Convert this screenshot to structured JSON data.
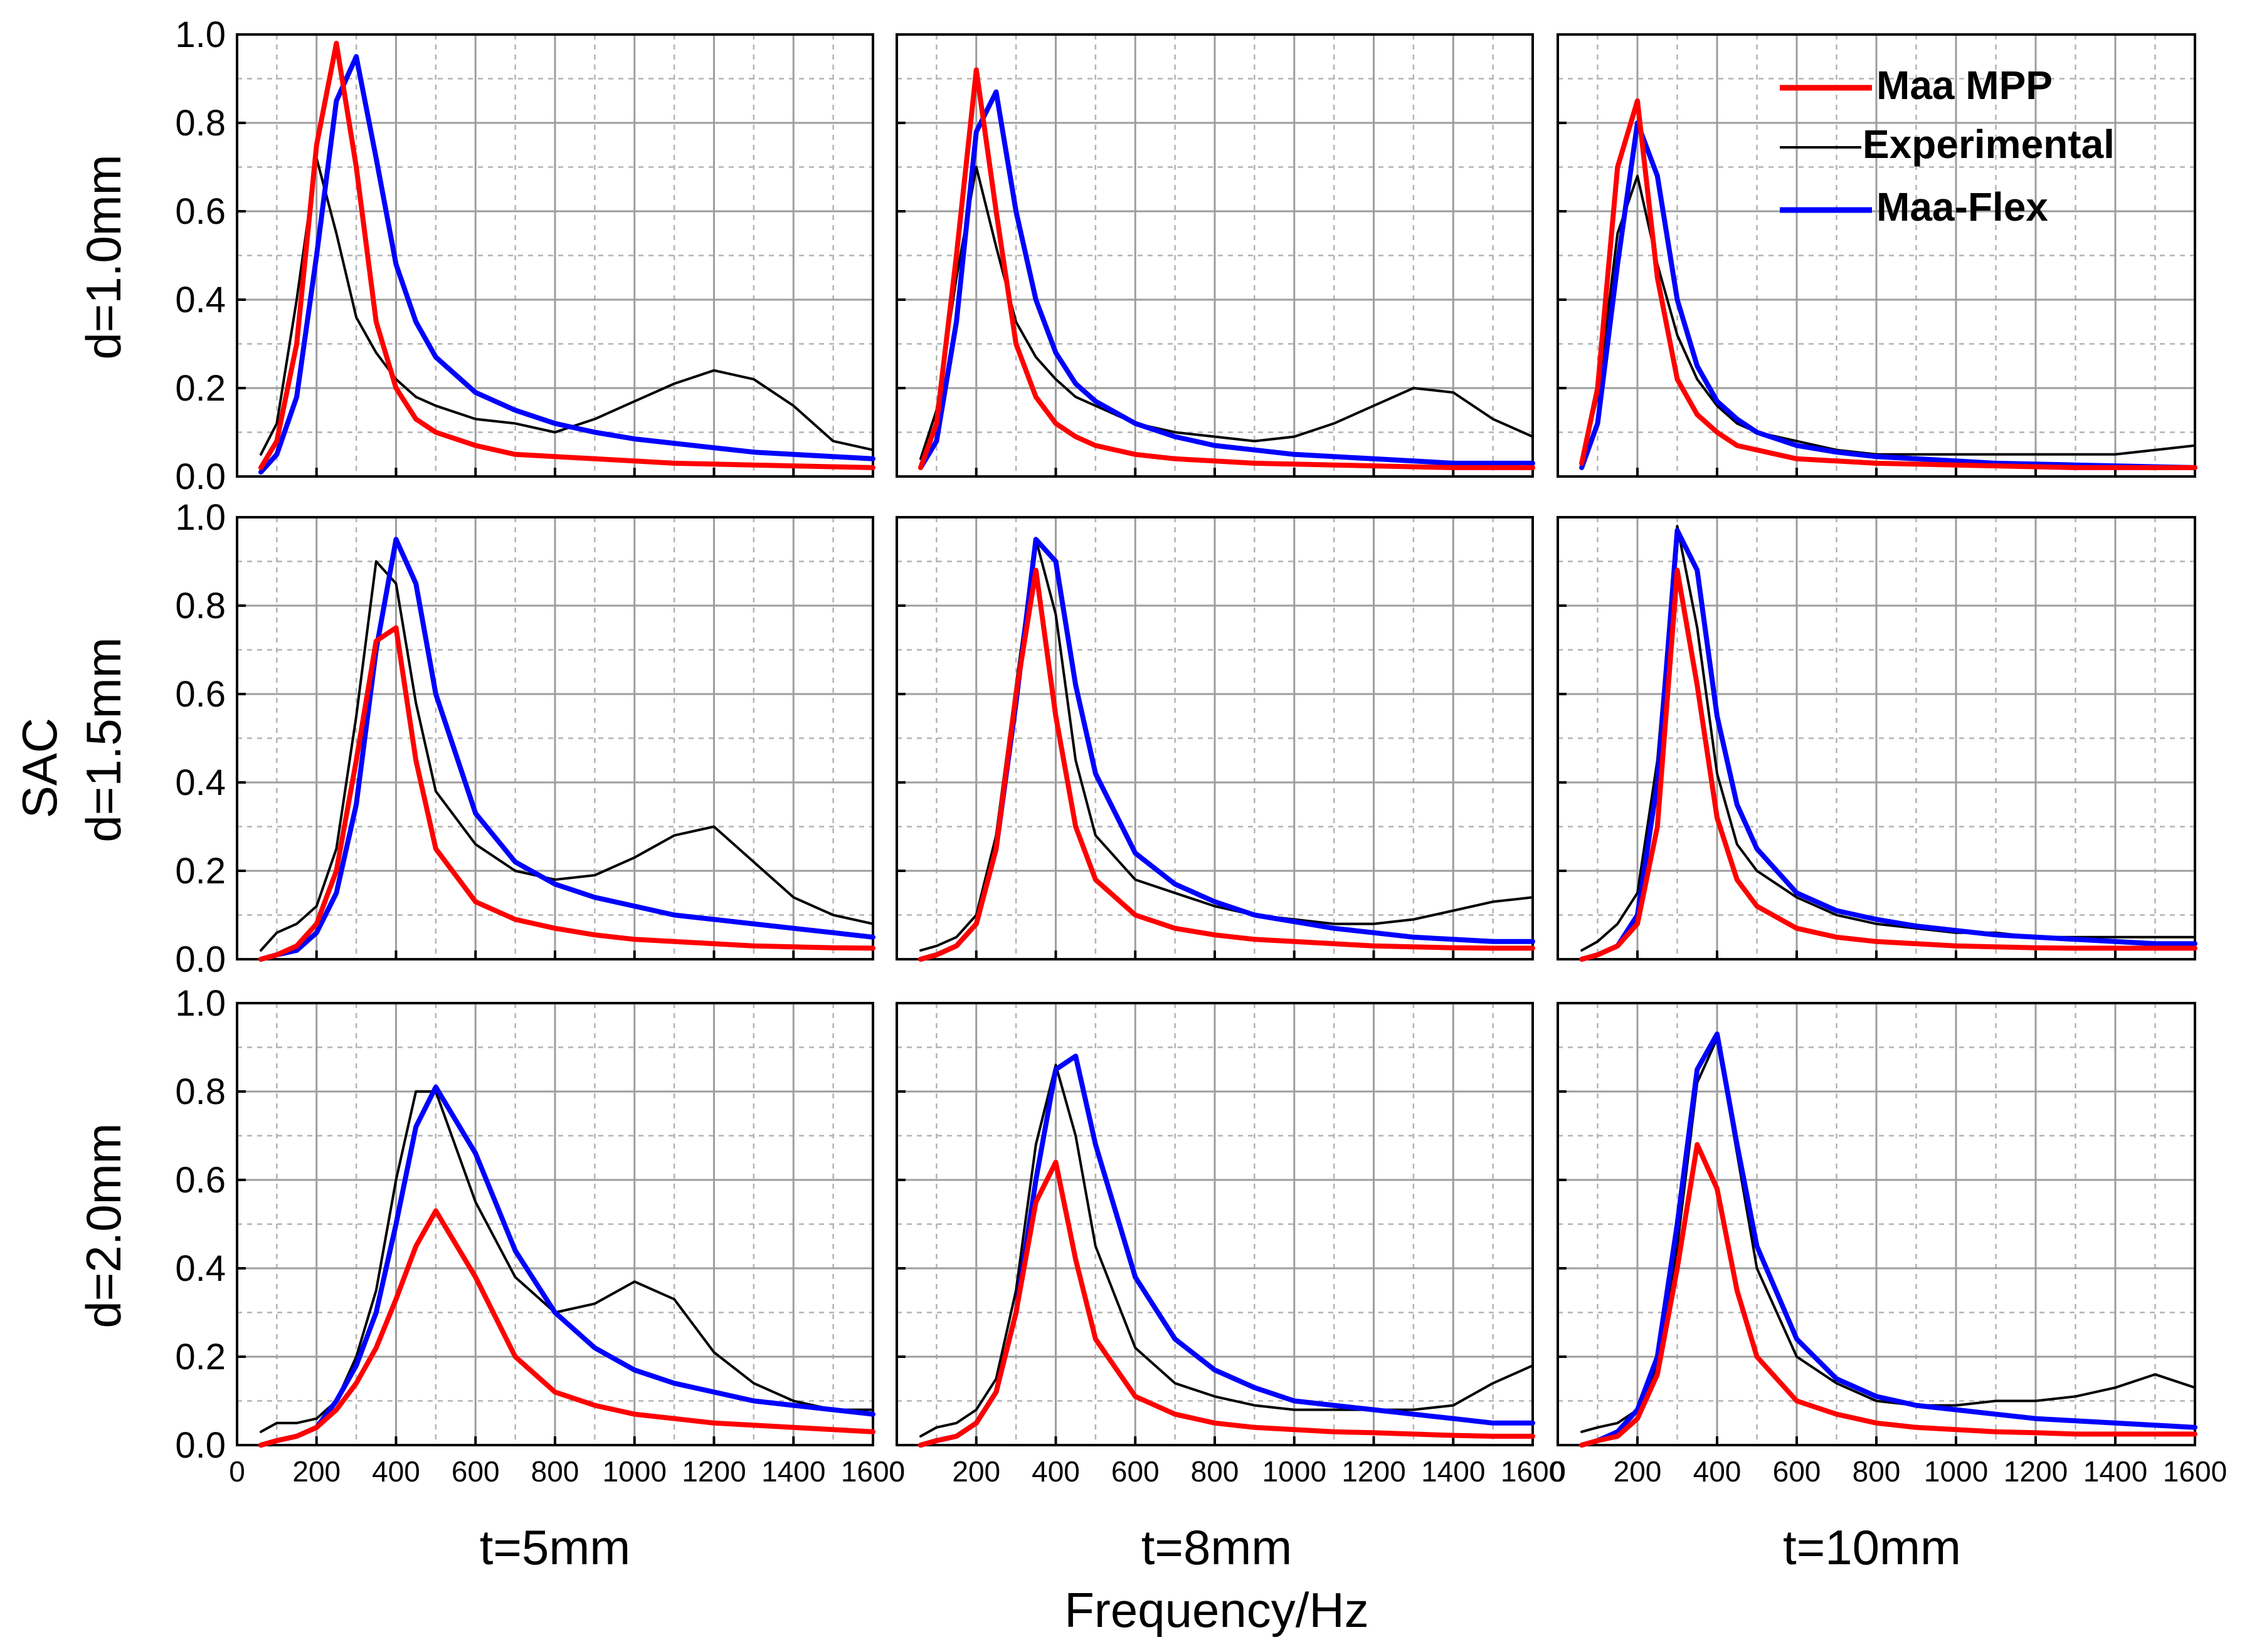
{
  "chart_data": {
    "type": "line",
    "layout": "3x3 grid of subplots",
    "ylabel": "SAC",
    "xlabel": "Frequency/Hz",
    "xlim": [
      0,
      1600
    ],
    "ylim": [
      0.0,
      1.0
    ],
    "x_ticks": [
      "0",
      "200",
      "400",
      "600",
      "800",
      "1000",
      "1200",
      "1400",
      "1600"
    ],
    "y_ticks": [
      "0.0",
      "0.2",
      "0.4",
      "0.6",
      "0.8",
      "1.0"
    ],
    "rows": [
      "d=1.0mm",
      "d=1.5mm",
      "d=2.0mm"
    ],
    "columns": [
      "t=5mm",
      "t=8mm",
      "t=10mm"
    ],
    "legend": [
      {
        "name": "Maa MPP",
        "color": "#ff0000"
      },
      {
        "name": "Experimental",
        "color": "#000000"
      },
      {
        "name": "Maa-Flex",
        "color": "#0000ff"
      }
    ],
    "series_x": [
      60,
      100,
      150,
      200,
      250,
      300,
      350,
      400,
      450,
      500,
      600,
      700,
      800,
      900,
      1000,
      1100,
      1200,
      1300,
      1400,
      1500,
      1600
    ],
    "panels": [
      {
        "row": 0,
        "col": 0,
        "maa_mpp": [
          0.02,
          0.08,
          0.3,
          0.75,
          0.98,
          0.7,
          0.35,
          0.2,
          0.13,
          0.1,
          0.07,
          0.05,
          0.045,
          0.04,
          0.035,
          0.03,
          0.028,
          0.026,
          0.024,
          0.022,
          0.02
        ],
        "experimental": [
          0.05,
          0.12,
          0.4,
          0.72,
          0.55,
          0.36,
          0.28,
          0.22,
          0.18,
          0.16,
          0.13,
          0.12,
          0.1,
          0.13,
          0.17,
          0.21,
          0.24,
          0.22,
          0.16,
          0.08,
          0.06
        ],
        "maa_flex": [
          0.01,
          0.05,
          0.18,
          0.5,
          0.85,
          0.95,
          0.72,
          0.48,
          0.35,
          0.27,
          0.19,
          0.15,
          0.12,
          0.1,
          0.085,
          0.075,
          0.065,
          0.055,
          0.05,
          0.045,
          0.04
        ]
      },
      {
        "row": 0,
        "col": 1,
        "maa_mpp": [
          0.02,
          0.12,
          0.5,
          0.92,
          0.6,
          0.3,
          0.18,
          0.12,
          0.09,
          0.07,
          0.05,
          0.04,
          0.035,
          0.03,
          0.028,
          0.026,
          0.024,
          0.022,
          0.02,
          0.02,
          0.02
        ],
        "experimental": [
          0.04,
          0.15,
          0.45,
          0.7,
          0.52,
          0.35,
          0.27,
          0.22,
          0.18,
          0.16,
          0.12,
          0.1,
          0.09,
          0.08,
          0.09,
          0.12,
          0.16,
          0.2,
          0.19,
          0.13,
          0.09
        ],
        "maa_flex": [
          0.02,
          0.08,
          0.35,
          0.78,
          0.87,
          0.6,
          0.4,
          0.28,
          0.21,
          0.17,
          0.12,
          0.09,
          0.07,
          0.06,
          0.05,
          0.045,
          0.04,
          0.035,
          0.03,
          0.03,
          0.03
        ]
      },
      {
        "row": 0,
        "col": 2,
        "maa_mpp": [
          0.03,
          0.2,
          0.7,
          0.85,
          0.45,
          0.22,
          0.14,
          0.1,
          0.07,
          0.06,
          0.04,
          0.035,
          0.03,
          0.028,
          0.026,
          0.024,
          0.022,
          0.02,
          0.02,
          0.02,
          0.02
        ],
        "experimental": [
          0.04,
          0.18,
          0.55,
          0.68,
          0.48,
          0.32,
          0.22,
          0.16,
          0.12,
          0.1,
          0.08,
          0.06,
          0.05,
          0.05,
          0.05,
          0.05,
          0.05,
          0.05,
          0.05,
          0.06,
          0.07
        ],
        "maa_flex": [
          0.02,
          0.12,
          0.48,
          0.8,
          0.68,
          0.4,
          0.25,
          0.17,
          0.13,
          0.1,
          0.07,
          0.055,
          0.045,
          0.04,
          0.035,
          0.03,
          0.028,
          0.026,
          0.024,
          0.022,
          0.02
        ]
      },
      {
        "row": 1,
        "col": 0,
        "maa_mpp": [
          0.0,
          0.01,
          0.03,
          0.08,
          0.2,
          0.45,
          0.72,
          0.75,
          0.45,
          0.25,
          0.13,
          0.09,
          0.07,
          0.055,
          0.045,
          0.04,
          0.035,
          0.03,
          0.028,
          0.026,
          0.025
        ],
        "experimental": [
          0.02,
          0.06,
          0.08,
          0.12,
          0.25,
          0.55,
          0.9,
          0.85,
          0.58,
          0.38,
          0.26,
          0.2,
          0.18,
          0.19,
          0.23,
          0.28,
          0.3,
          0.22,
          0.14,
          0.1,
          0.08
        ],
        "maa_flex": [
          0.0,
          0.01,
          0.02,
          0.06,
          0.15,
          0.35,
          0.7,
          0.95,
          0.85,
          0.6,
          0.33,
          0.22,
          0.17,
          0.14,
          0.12,
          0.1,
          0.09,
          0.08,
          0.07,
          0.06,
          0.05
        ]
      },
      {
        "row": 1,
        "col": 1,
        "maa_mpp": [
          0.0,
          0.01,
          0.03,
          0.08,
          0.25,
          0.6,
          0.88,
          0.55,
          0.3,
          0.18,
          0.1,
          0.07,
          0.055,
          0.045,
          0.04,
          0.035,
          0.03,
          0.028,
          0.026,
          0.025,
          0.025
        ],
        "experimental": [
          0.02,
          0.03,
          0.05,
          0.1,
          0.28,
          0.62,
          0.95,
          0.78,
          0.45,
          0.28,
          0.18,
          0.15,
          0.12,
          0.1,
          0.09,
          0.08,
          0.08,
          0.09,
          0.11,
          0.13,
          0.14
        ],
        "maa_flex": [
          0.0,
          0.01,
          0.03,
          0.08,
          0.25,
          0.58,
          0.95,
          0.9,
          0.62,
          0.42,
          0.24,
          0.17,
          0.13,
          0.1,
          0.085,
          0.07,
          0.06,
          0.05,
          0.045,
          0.04,
          0.04
        ]
      },
      {
        "row": 1,
        "col": 2,
        "maa_mpp": [
          0.0,
          0.01,
          0.03,
          0.08,
          0.3,
          0.88,
          0.62,
          0.32,
          0.18,
          0.12,
          0.07,
          0.05,
          0.04,
          0.035,
          0.03,
          0.028,
          0.026,
          0.025,
          0.025,
          0.025,
          0.025
        ],
        "experimental": [
          0.02,
          0.04,
          0.08,
          0.15,
          0.45,
          0.98,
          0.75,
          0.42,
          0.26,
          0.2,
          0.14,
          0.1,
          0.08,
          0.07,
          0.06,
          0.06,
          0.05,
          0.05,
          0.05,
          0.05,
          0.05
        ],
        "maa_flex": [
          0.0,
          0.01,
          0.03,
          0.1,
          0.4,
          0.97,
          0.88,
          0.55,
          0.35,
          0.25,
          0.15,
          0.11,
          0.09,
          0.075,
          0.065,
          0.055,
          0.05,
          0.045,
          0.04,
          0.035,
          0.035
        ]
      },
      {
        "row": 2,
        "col": 0,
        "maa_mpp": [
          0.0,
          0.01,
          0.02,
          0.04,
          0.08,
          0.14,
          0.22,
          0.33,
          0.45,
          0.53,
          0.38,
          0.2,
          0.12,
          0.09,
          0.07,
          0.06,
          0.05,
          0.045,
          0.04,
          0.035,
          0.03
        ],
        "experimental": [
          0.03,
          0.05,
          0.05,
          0.06,
          0.1,
          0.2,
          0.35,
          0.6,
          0.8,
          0.8,
          0.55,
          0.38,
          0.3,
          0.32,
          0.37,
          0.33,
          0.21,
          0.14,
          0.1,
          0.08,
          0.08
        ],
        "maa_flex": [
          0.0,
          0.01,
          0.02,
          0.04,
          0.1,
          0.18,
          0.3,
          0.5,
          0.72,
          0.81,
          0.66,
          0.44,
          0.3,
          0.22,
          0.17,
          0.14,
          0.12,
          0.1,
          0.09,
          0.08,
          0.07
        ]
      },
      {
        "row": 2,
        "col": 1,
        "maa_mpp": [
          0.0,
          0.01,
          0.02,
          0.05,
          0.12,
          0.3,
          0.55,
          0.64,
          0.42,
          0.24,
          0.11,
          0.07,
          0.05,
          0.04,
          0.035,
          0.03,
          0.028,
          0.025,
          0.022,
          0.02,
          0.02
        ],
        "experimental": [
          0.02,
          0.04,
          0.05,
          0.08,
          0.15,
          0.35,
          0.68,
          0.86,
          0.7,
          0.45,
          0.22,
          0.14,
          0.11,
          0.09,
          0.08,
          0.08,
          0.08,
          0.08,
          0.09,
          0.14,
          0.18
        ],
        "maa_flex": [
          0.0,
          0.01,
          0.02,
          0.05,
          0.12,
          0.3,
          0.6,
          0.85,
          0.88,
          0.68,
          0.38,
          0.24,
          0.17,
          0.13,
          0.1,
          0.09,
          0.08,
          0.07,
          0.06,
          0.05,
          0.05
        ]
      },
      {
        "row": 2,
        "col": 2,
        "maa_mpp": [
          0.0,
          0.01,
          0.02,
          0.06,
          0.16,
          0.4,
          0.68,
          0.58,
          0.35,
          0.2,
          0.1,
          0.07,
          0.05,
          0.04,
          0.035,
          0.03,
          0.028,
          0.025,
          0.025,
          0.025,
          0.025
        ],
        "experimental": [
          0.03,
          0.04,
          0.05,
          0.08,
          0.18,
          0.45,
          0.82,
          0.92,
          0.66,
          0.4,
          0.2,
          0.14,
          0.1,
          0.09,
          0.09,
          0.1,
          0.1,
          0.11,
          0.13,
          0.16,
          0.13
        ],
        "maa_flex": [
          0.0,
          0.01,
          0.03,
          0.08,
          0.2,
          0.5,
          0.85,
          0.93,
          0.68,
          0.45,
          0.24,
          0.15,
          0.11,
          0.09,
          0.08,
          0.07,
          0.06,
          0.055,
          0.05,
          0.045,
          0.04
        ]
      }
    ]
  }
}
